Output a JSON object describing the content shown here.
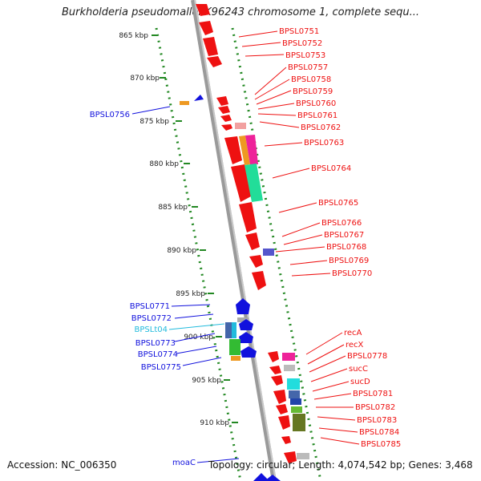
{
  "title": "Burkholderia pseudomallei K96243 chromosome 1, complete sequ...",
  "accession": "Accession: NC_006350",
  "topology": "Topology: circular; Length: 4,074,542 bp; Genes: 3,468",
  "scale_labels": [
    "865 kbp",
    "870 kbp",
    "875 kbp",
    "880 kbp",
    "885 kbp",
    "890 kbp",
    "895 kbp",
    "900 kbp",
    "905 kbp",
    "910 kbp"
  ],
  "right_labels": [
    "BPSL0751",
    "BPSL0752",
    "BPSL0753",
    "BPSL0757",
    "BPSL0758",
    "BPSL0759",
    "BPSL0760",
    "BPSL0761",
    "BPSL0762",
    "BPSL0763",
    "BPSL0764",
    "BPSL0765",
    "BPSL0766",
    "BPSL0767",
    "BPSL0768",
    "BPSL0769",
    "BPSL0770",
    "recA",
    "recX",
    "BPSL0778",
    "sucC",
    "sucD",
    "BPSL0781",
    "BPSL0782",
    "BPSL0783",
    "BPSL0784",
    "BPSL0785"
  ],
  "left_labels": [
    "BPSL0756",
    "BPSL0771",
    "BPSL0772",
    "BPSLt04",
    "BPSL0773",
    "BPSL0774",
    "BPSL0775",
    "moaC"
  ],
  "colors": {
    "forward_gene": "#ee1111",
    "reverse_gene": "#1111dd",
    "trna": "#22bbdd",
    "backbone": "#999999",
    "ruler_ticks": "#228822"
  }
}
